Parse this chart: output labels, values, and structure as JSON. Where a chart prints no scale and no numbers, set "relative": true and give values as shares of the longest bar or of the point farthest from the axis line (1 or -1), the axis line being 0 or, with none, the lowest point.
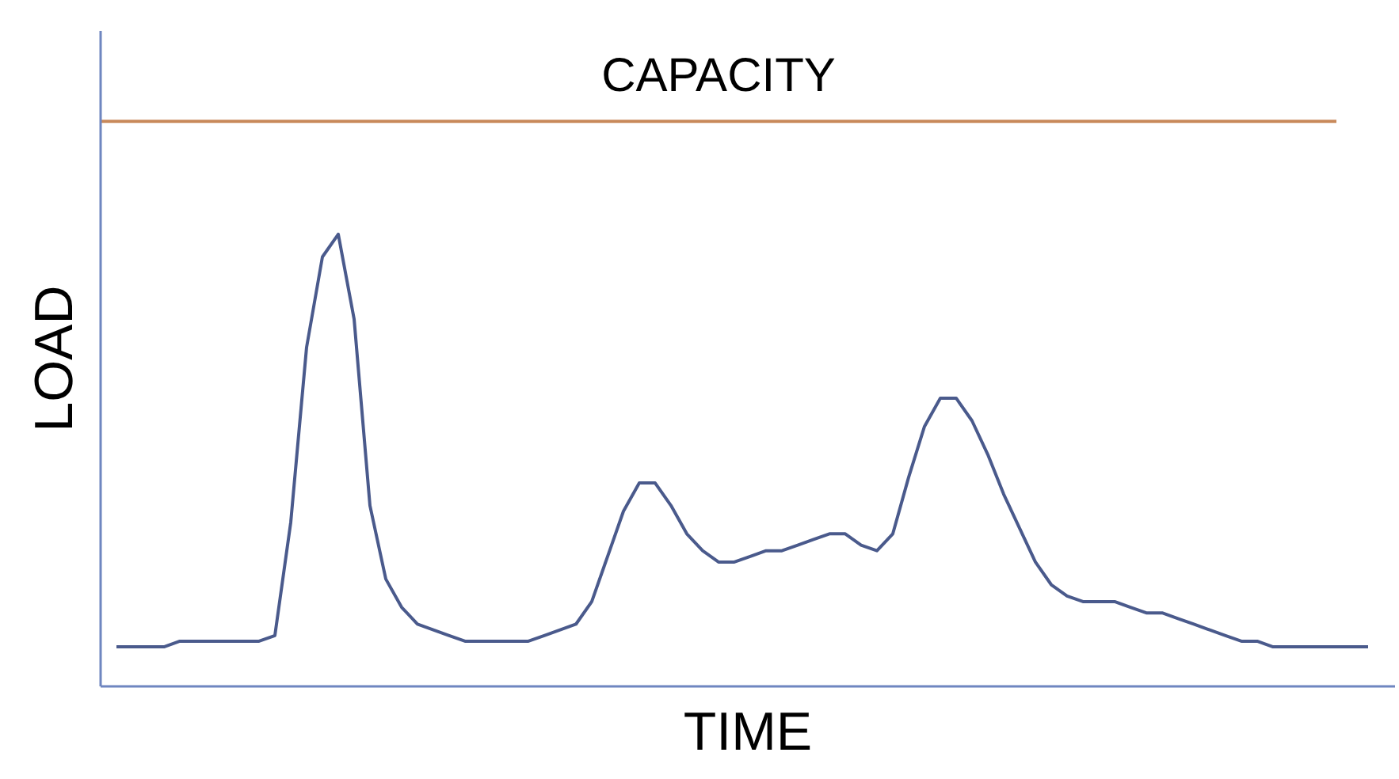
{
  "chart_data": {
    "type": "line",
    "relative": true,
    "xlabel": "TIME",
    "ylabel": "LOAD",
    "categories": [
      null,
      null,
      null,
      null,
      null,
      null,
      null,
      null,
      null,
      null,
      null,
      null,
      null,
      null,
      null,
      null,
      null,
      null,
      null,
      null,
      null,
      null,
      null,
      null,
      null,
      null,
      null,
      null,
      null,
      null,
      null,
      null,
      null,
      null,
      null,
      null,
      null,
      null,
      null,
      null,
      null,
      null,
      null,
      null,
      null,
      null,
      null,
      null,
      null,
      null,
      null,
      null,
      null,
      null,
      null,
      null,
      null,
      null,
      null,
      null,
      null,
      null,
      null,
      null,
      null,
      null,
      null,
      null,
      null,
      null,
      null,
      null,
      null,
      null,
      null,
      null,
      null,
      null,
      null,
      null,
      null
    ],
    "series": [
      {
        "color": "#4a5a8c",
        "values": [
          null,
          0.07,
          0.07,
          0.07,
          0.07,
          0.08,
          0.08,
          0.08,
          0.08,
          0.08,
          0.08,
          0.09,
          0.29,
          0.6,
          0.76,
          0.8,
          0.65,
          0.32,
          0.19,
          0.14,
          0.11,
          0.1,
          0.09,
          0.08,
          0.08,
          0.08,
          0.08,
          0.08,
          0.09,
          0.1,
          0.11,
          0.15,
          0.23,
          0.31,
          0.36,
          0.36,
          0.32,
          0.27,
          0.24,
          0.22,
          0.22,
          0.23,
          0.24,
          0.24,
          0.25,
          0.26,
          0.27,
          0.27,
          0.25,
          0.24,
          0.27,
          0.37,
          0.46,
          0.51,
          0.51,
          0.47,
          0.41,
          0.34,
          0.28,
          0.22,
          0.18,
          0.16,
          0.15,
          0.15,
          0.15,
          0.14,
          0.13,
          0.13,
          0.12,
          0.11,
          0.1,
          0.09,
          0.08,
          0.08,
          0.07,
          0.07,
          0.07,
          0.07,
          0.07,
          0.07,
          0.07
        ]
      },
      {
        "name": "CAPACITY",
        "color": "#c8895a",
        "values": [
          1,
          1,
          1,
          1,
          1,
          1,
          1,
          1,
          1,
          1,
          1,
          1,
          1,
          1,
          1,
          1,
          1,
          1,
          1,
          1,
          1,
          1,
          1,
          1,
          1,
          1,
          1,
          1,
          1,
          1,
          1,
          1,
          1,
          1,
          1,
          1,
          1,
          1,
          1,
          1,
          1,
          1,
          1,
          1,
          1,
          1,
          1,
          1,
          1,
          1,
          1,
          1,
          1,
          1,
          1,
          1,
          1,
          1,
          1,
          1,
          1,
          1,
          1,
          1,
          1,
          1,
          1,
          1,
          1,
          1,
          1,
          1,
          1,
          1,
          1,
          1,
          1,
          1,
          1,
          null,
          null
        ]
      }
    ]
  }
}
